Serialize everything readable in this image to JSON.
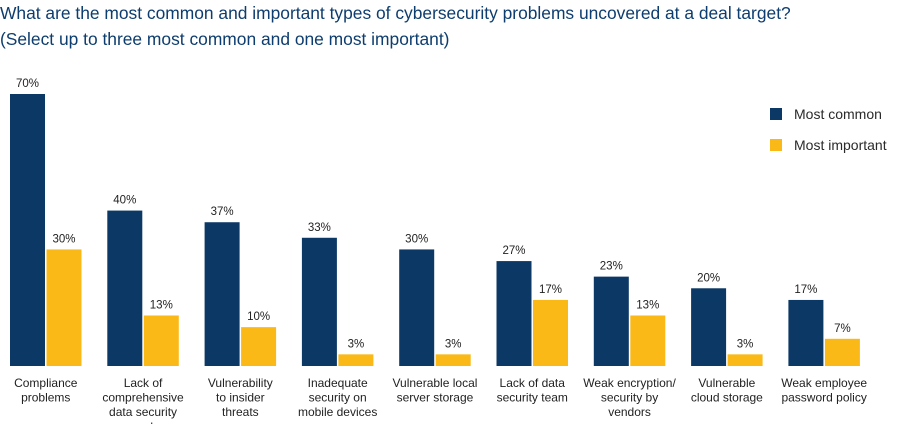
{
  "title_line1": "What are the most common and important types of cybersecurity problems uncovered at a deal target?",
  "title_line2": "(Select up to three most common and one most important)",
  "chart_data": {
    "type": "bar",
    "categories": [
      [
        "Compliance",
        "problems"
      ],
      [
        "Lack of",
        "comprehensive",
        "data security",
        "and"
      ],
      [
        "Vulnerability",
        "to insider",
        "threats"
      ],
      [
        "Inadequate",
        "security on",
        "mobile devices"
      ],
      [
        "Vulnerable local",
        "server storage"
      ],
      [
        "Lack of data",
        "security team"
      ],
      [
        "Weak encryption/",
        "security by",
        "vendors"
      ],
      [
        "Vulnerable",
        "cloud storage"
      ],
      [
        "Weak employee",
        "password policy"
      ]
    ],
    "series": [
      {
        "name": "Most common",
        "color": "#0b3865",
        "values": [
          70,
          40,
          37,
          33,
          30,
          27,
          23,
          20,
          17
        ],
        "labels": [
          "70%",
          "40%",
          "37%",
          "33%",
          "30%",
          "27%",
          "23%",
          "20%",
          "17%"
        ]
      },
      {
        "name": "Most important",
        "color": "#fbb917",
        "values": [
          30,
          13,
          10,
          3,
          3,
          17,
          13,
          3,
          7
        ],
        "labels": [
          "30%",
          "13%",
          "10%",
          "3%",
          "3%",
          "17%",
          "13%",
          "3%",
          "7%"
        ]
      }
    ],
    "ylim": [
      0,
      70
    ],
    "legend_position": "top-right",
    "grid": false
  }
}
